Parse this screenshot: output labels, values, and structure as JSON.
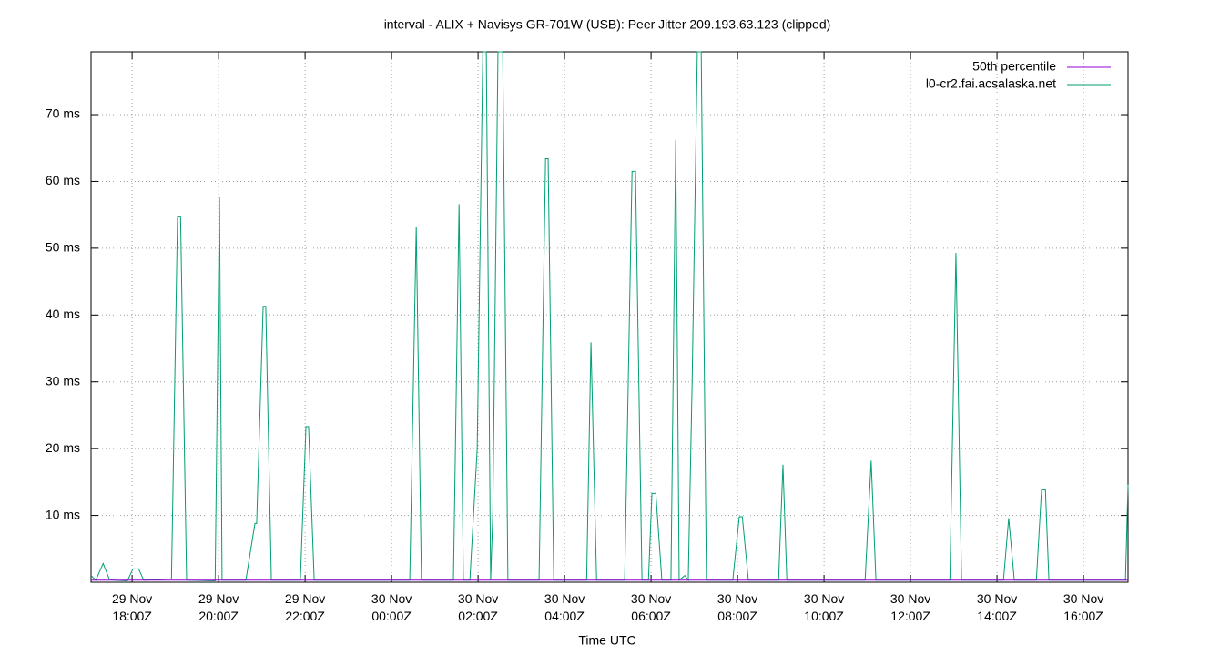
{
  "chart_data": {
    "type": "line",
    "title": "interval - ALIX + Navisys GR-701W (USB): Peer Jitter 209.193.63.123 (clipped)",
    "x_label": "Time UTC",
    "xlim": [
      17.05,
      41.03
    ],
    "xticks": [
      {
        "value": 18,
        "label": "29 Nov\n18:00Z"
      },
      {
        "value": 20,
        "label": "29 Nov\n20:00Z"
      },
      {
        "value": 22,
        "label": "29 Nov\n22:00Z"
      },
      {
        "value": 24,
        "label": "30 Nov\n00:00Z"
      },
      {
        "value": 26,
        "label": "30 Nov\n02:00Z"
      },
      {
        "value": 28,
        "label": "30 Nov\n04:00Z"
      },
      {
        "value": 30,
        "label": "30 Nov\n06:00Z"
      },
      {
        "value": 32,
        "label": "30 Nov\n08:00Z"
      },
      {
        "value": 34,
        "label": "30 Nov\n10:00Z"
      },
      {
        "value": 36,
        "label": "30 Nov\n12:00Z"
      },
      {
        "value": 38,
        "label": "30 Nov\n14:00Z"
      },
      {
        "value": 40,
        "label": "30 Nov\n16:00Z"
      }
    ],
    "ylim": [
      0,
      79.4
    ],
    "yticks": [
      {
        "value": 10,
        "label": "10 ms"
      },
      {
        "value": 20,
        "label": "20 ms"
      },
      {
        "value": 30,
        "label": "30 ms"
      },
      {
        "value": 40,
        "label": "40 ms"
      },
      {
        "value": 50,
        "label": "50 ms"
      },
      {
        "value": 60,
        "label": "60 ms"
      },
      {
        "value": 70,
        "label": "70 ms"
      }
    ],
    "grid": true,
    "legend": "top-right",
    "series": [
      {
        "name": "50th percentile",
        "color": "#9400d3",
        "x": [
          17.05,
          41.03
        ],
        "values": [
          0.3,
          0.3
        ]
      },
      {
        "name": "l0-cr2.fai.acsalaska.net",
        "color": "#009e73",
        "x": [
          17.05,
          17.16,
          17.33,
          17.47,
          17.58,
          17.89,
          18.02,
          18.15,
          18.27,
          18.91,
          19.05,
          19.12,
          19.26,
          19.92,
          20.02,
          20.08,
          20.63,
          20.84,
          20.88,
          21.03,
          21.09,
          21.22,
          21.89,
          22.02,
          22.08,
          22.21,
          24.42,
          24.57,
          24.69,
          25.43,
          25.56,
          25.66,
          25.81,
          25.98,
          26.11,
          26.19,
          26.29,
          26.34,
          26.46,
          26.57,
          26.69,
          27.41,
          27.56,
          27.62,
          27.75,
          28.51,
          28.61,
          28.74,
          29.39,
          29.56,
          29.64,
          29.79,
          29.94,
          30.02,
          30.11,
          30.25,
          30.46,
          30.57,
          30.65,
          30.78,
          30.86,
          30.95,
          31.07,
          31.16,
          31.28,
          31.89,
          32.04,
          32.11,
          32.25,
          32.95,
          33.05,
          33.14,
          34.95,
          35.09,
          35.2,
          36.91,
          37.05,
          37.18,
          38.15,
          38.27,
          38.4,
          38.91,
          39.03,
          39.12,
          39.2,
          40.97,
          41.03
        ],
        "values": [
          1,
          0.3,
          2.8,
          0.5,
          0.3,
          0.2,
          2,
          2,
          0.3,
          0.5,
          54.8,
          54.8,
          0.3,
          0.2,
          57.6,
          0.3,
          0.3,
          8.8,
          8.8,
          41.3,
          41.3,
          0.3,
          0.3,
          23.3,
          23.3,
          0.3,
          0.3,
          53.2,
          0.3,
          0.3,
          56.6,
          0.3,
          0.3,
          20,
          79.4,
          79.4,
          0.3,
          10,
          79.4,
          79.4,
          0.3,
          0.3,
          63.4,
          63.4,
          0.3,
          0.3,
          35.9,
          0.3,
          0.3,
          61.5,
          61.5,
          0.3,
          0.3,
          13.3,
          13.3,
          0.3,
          0.3,
          66.2,
          0.3,
          1,
          0.3,
          30,
          79.4,
          79.4,
          0.3,
          0.3,
          9.8,
          9.8,
          0.3,
          0.3,
          17.6,
          0.3,
          0.3,
          18.2,
          0.3,
          0.3,
          49.3,
          0.3,
          0.3,
          9.6,
          0.3,
          0.3,
          13.8,
          13.8,
          0.3,
          0.3,
          14.6
        ]
      }
    ]
  }
}
